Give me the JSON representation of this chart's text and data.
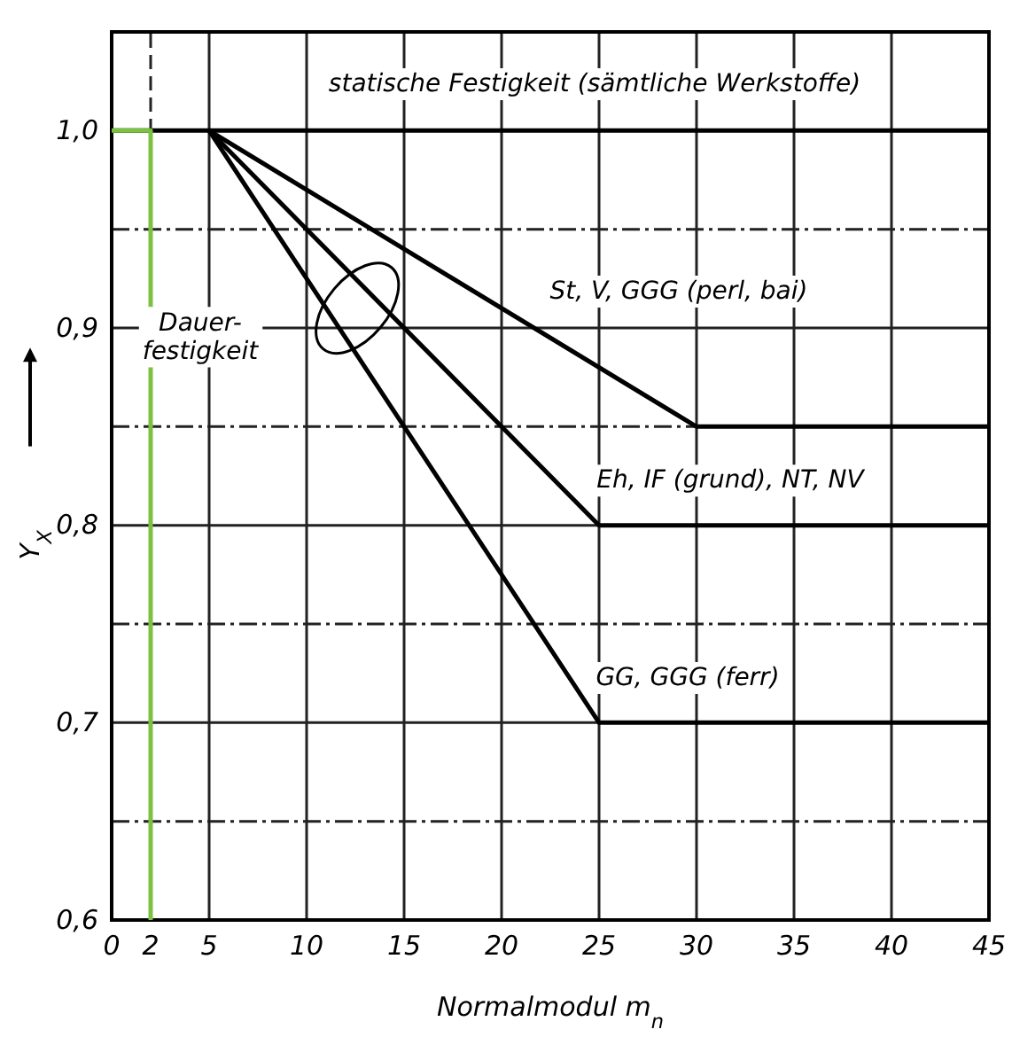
{
  "chart_data": {
    "type": "line",
    "xlabel": "Normalmodul m$_{n}$",
    "ylabel": "Y$_{X}$",
    "xlim": [
      0,
      45
    ],
    "ylim": [
      0.6,
      1.05
    ],
    "xticks": [
      0,
      {
        "value": 2,
        "label": "2"
      },
      5,
      10,
      15,
      20,
      25,
      30,
      35,
      40,
      45
    ],
    "yticks": [
      {
        "value": 0.6,
        "label": "0,6"
      },
      {
        "value": 0.65,
        "label": null
      },
      {
        "value": 0.7,
        "label": "0,7"
      },
      {
        "value": 0.75,
        "label": null
      },
      {
        "value": 0.8,
        "label": "0,8"
      },
      {
        "value": 0.85,
        "label": null
      },
      {
        "value": 0.9,
        "label": "0,9"
      },
      {
        "value": 0.95,
        "label": null
      },
      {
        "value": 1.0,
        "label": "1,0"
      }
    ],
    "grid": true,
    "line_style": "solid",
    "marker": "none",
    "series": [
      {
        "color": "#000000",
        "x": [
          0,
          45
        ],
        "values": [
          1.0,
          1.0
        ]
      },
      {
        "color": "#000000",
        "x": [
          5,
          30,
          45
        ],
        "values": [
          1.0,
          0.85,
          0.85
        ]
      },
      {
        "color": "#000000",
        "x": [
          5,
          25,
          45
        ],
        "values": [
          1.0,
          0.8,
          0.8
        ]
      },
      {
        "color": "#000000",
        "x": [
          5,
          25,
          45
        ],
        "values": [
          1.0,
          0.7,
          0.7
        ]
      },
      {
        "color": "#7cc242",
        "x": [
          0,
          2,
          2
        ],
        "values": [
          1.0,
          1.0,
          0.6
        ]
      }
    ],
    "annotations": [
      "statische Festigkeit (sämtliche Werkstoffe)",
      "St, V, GGG (perl, bai)",
      "Eh, IF (grund), NT, NV",
      "GG, GGG (ferr)",
      "Dauer- festigkeit"
    ]
  }
}
